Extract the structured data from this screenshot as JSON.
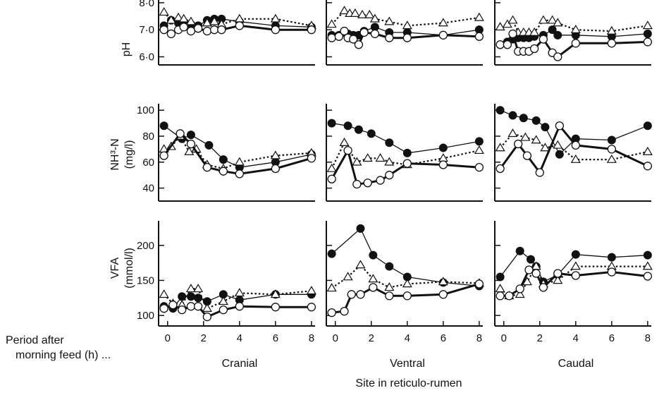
{
  "figure": {
    "xlabel": "Site in reticulo-rumen",
    "period_label_line1": "Period after",
    "period_label_line2": "morning feed (h) ..."
  },
  "chart_data": {
    "type": "line",
    "grid": false,
    "legend": "none",
    "sites": [
      "Cranial",
      "Ventral",
      "Caudal"
    ],
    "x_ticks": [
      0,
      2,
      4,
      6,
      8
    ],
    "xlim": [
      -0.5,
      8.2
    ],
    "series_styles": [
      {
        "marker": "filled-circle",
        "line": "thin-solid"
      },
      {
        "marker": "open-triangle",
        "line": "dotted"
      },
      {
        "marker": "open-circle",
        "line": "thick-solid"
      }
    ],
    "rows": [
      {
        "key": "ph",
        "ylabel": [
          "pH"
        ],
        "ylim": [
          5.7,
          8.1
        ],
        "yticks": [
          6.0,
          7.0,
          8.0
        ],
        "ytick_labels": [
          "6·0",
          "7·0",
          "8·0"
        ],
        "panels": [
          {
            "series": [
              {
                "x": [
                  -0.2,
                  0.2,
                  0.6,
                  0.9,
                  1.3,
                  1.7,
                  2.2,
                  2.6,
                  3.0,
                  4.0,
                  6.0,
                  8.0
                ],
                "y": [
                  7.15,
                  7.35,
                  7.25,
                  7.2,
                  7.2,
                  7.15,
                  7.35,
                  7.4,
                  7.4,
                  7.3,
                  7.15,
                  7.1
                ]
              },
              {
                "x": [
                  -0.2,
                  0.2,
                  0.6,
                  0.9,
                  1.3,
                  1.7,
                  2.2,
                  2.6,
                  3.0,
                  4.0,
                  6.0,
                  8.0
                ],
                "y": [
                  7.65,
                  7.35,
                  7.45,
                  7.4,
                  7.3,
                  7.1,
                  7.25,
                  7.3,
                  7.2,
                  7.4,
                  7.4,
                  7.15
                ]
              },
              {
                "x": [
                  -0.2,
                  0.2,
                  0.6,
                  0.9,
                  1.3,
                  1.7,
                  2.2,
                  2.6,
                  3.0,
                  4.0,
                  6.0,
                  8.0
                ],
                "y": [
                  7.0,
                  6.85,
                  7.0,
                  7.1,
                  6.95,
                  7.05,
                  6.95,
                  7.0,
                  7.0,
                  7.15,
                  7.0,
                  7.0
                ]
              }
            ]
          },
          {
            "series": [
              {
                "x": [
                  -0.2,
                  0.2,
                  0.5,
                  0.7,
                  1.0,
                  1.3,
                  1.6,
                  2.2,
                  3.0,
                  4.0,
                  6.0,
                  8.0
                ],
                "y": [
                  6.8,
                  6.8,
                  6.9,
                  6.85,
                  6.8,
                  6.8,
                  6.95,
                  7.1,
                  6.9,
                  6.9,
                  6.8,
                  7.0
                ]
              },
              {
                "x": [
                  -0.2,
                  0.5,
                  0.8,
                  1.1,
                  1.5,
                  1.9,
                  2.2,
                  3.0,
                  4.0,
                  6.0,
                  8.0
                ],
                "y": [
                  7.2,
                  7.7,
                  7.6,
                  7.6,
                  7.55,
                  7.55,
                  7.4,
                  7.3,
                  7.15,
                  7.25,
                  7.45
                ]
              },
              {
                "x": [
                  -0.2,
                  0.2,
                  0.5,
                  0.7,
                  1.0,
                  1.3,
                  1.6,
                  2.2,
                  3.0,
                  4.0,
                  6.0,
                  8.0
                ],
                "y": [
                  6.7,
                  6.75,
                  6.95,
                  6.7,
                  6.65,
                  6.45,
                  6.9,
                  6.85,
                  6.7,
                  6.7,
                  6.8,
                  6.75
                ]
              }
            ]
          },
          {
            "series": [
              {
                "x": [
                  -0.2,
                  0.2,
                  0.5,
                  0.8,
                  1.1,
                  1.4,
                  1.7,
                  2.2,
                  2.7,
                  3.0,
                  4.0,
                  6.0,
                  8.0
                ],
                "y": [
                  6.45,
                  6.55,
                  6.65,
                  6.7,
                  6.7,
                  6.7,
                  6.75,
                  6.8,
                  7.0,
                  6.8,
                  6.8,
                  6.75,
                  6.85
                ]
              },
              {
                "x": [
                  -0.2,
                  0.2,
                  0.5,
                  0.8,
                  1.1,
                  1.4,
                  1.7,
                  2.2,
                  2.7,
                  3.0,
                  4.0,
                  6.0,
                  8.0
                ],
                "y": [
                  7.1,
                  7.2,
                  7.35,
                  6.9,
                  6.9,
                  6.9,
                  6.9,
                  7.35,
                  7.35,
                  7.25,
                  7.0,
                  6.95,
                  7.15
                ]
              },
              {
                "x": [
                  -0.2,
                  0.2,
                  0.5,
                  0.8,
                  1.1,
                  1.4,
                  1.7,
                  2.2,
                  2.7,
                  3.0,
                  4.0,
                  6.0,
                  8.0
                ],
                "y": [
                  6.45,
                  6.45,
                  6.85,
                  6.2,
                  6.2,
                  6.2,
                  6.3,
                  6.65,
                  6.15,
                  6.0,
                  6.5,
                  6.5,
                  6.55
                ]
              }
            ]
          }
        ]
      },
      {
        "key": "nh3",
        "ylabel": [
          "NH³-N",
          "(mg/l)"
        ],
        "ylim": [
          30,
          105
        ],
        "yticks": [
          40,
          60,
          80,
          100
        ],
        "ytick_labels": [
          "40",
          "60",
          "80",
          "100"
        ],
        "panels": [
          {
            "series": [
              {
                "x": [
                  -0.2,
                  0.8,
                  1.3,
                  2.3,
                  3.1,
                  4.0,
                  6.0,
                  8.0
                ],
                "y": [
                  88,
                  78,
                  81,
                  73,
                  62,
                  56,
                  60,
                  66
                ]
              },
              {
                "x": [
                  -0.2,
                  0.2,
                  0.7,
                  1.2,
                  1.6,
                  2.2,
                  3.1,
                  4.0,
                  6.0,
                  8.0
                ],
                "y": [
                  70,
                  72,
                  80,
                  68,
                  70,
                  58,
                  55,
                  60,
                  65,
                  67
                ]
              },
              {
                "x": [
                  -0.2,
                  0.7,
                  1.3,
                  2.2,
                  3.1,
                  4.0,
                  6.0,
                  8.0
                ],
                "y": [
                  65,
                  82,
                  74,
                  56,
                  53,
                  51,
                  55,
                  63
                ]
              }
            ]
          },
          {
            "series": [
              {
                "x": [
                  -0.2,
                  0.7,
                  1.3,
                  2.0,
                  3.0,
                  4.0,
                  6.0,
                  8.0
                ],
                "y": [
                  90,
                  88,
                  85,
                  82,
                  75,
                  67,
                  71,
                  76
                ]
              },
              {
                "x": [
                  -0.2,
                  0.5,
                  1.2,
                  1.8,
                  2.5,
                  3.0,
                  4.0,
                  6.0,
                  8.0
                ],
                "y": [
                  55,
                  75,
                  60,
                  63,
                  63,
                  60,
                  58,
                  63,
                  69
                ]
              },
              {
                "x": [
                  -0.2,
                  0.7,
                  1.2,
                  1.8,
                  2.5,
                  3.0,
                  4.0,
                  6.0,
                  8.0
                ],
                "y": [
                  47,
                  69,
                  43,
                  44,
                  46,
                  50,
                  59,
                  58,
                  56
                ]
              }
            ]
          },
          {
            "series": [
              {
                "x": [
                  -0.2,
                  0.5,
                  1.1,
                  1.8,
                  2.3,
                  3.1,
                  4.0,
                  6.0,
                  8.0
                ],
                "y": [
                  100,
                  96,
                  94,
                  92,
                  87,
                  66,
                  78,
                  77,
                  88
                ]
              },
              {
                "x": [
                  -0.2,
                  0.5,
                  1.2,
                  1.8,
                  2.3,
                  3.0,
                  4.0,
                  6.0,
                  8.0
                ],
                "y": [
                  71,
                  82,
                  79,
                  77,
                  71,
                  73,
                  62,
                  62,
                  68
                ]
              },
              {
                "x": [
                  -0.2,
                  0.8,
                  1.3,
                  2.0,
                  3.1,
                  4.0,
                  6.0,
                  8.0
                ],
                "y": [
                  55,
                  74,
                  65,
                  52,
                  88,
                  73,
                  70,
                  57
                ]
              }
            ]
          }
        ]
      },
      {
        "key": "vfa",
        "ylabel": [
          "VFA",
          "(mmol/l)"
        ],
        "ylim": [
          85,
          235
        ],
        "yticks": [
          100,
          150,
          200
        ],
        "ytick_labels": [
          "100",
          "150",
          "200"
        ],
        "panels": [
          {
            "series": [
              {
                "x": [
                  -0.2,
                  0.3,
                  0.8,
                  1.3,
                  1.7,
                  2.2,
                  3.1,
                  4.0,
                  6.0,
                  8.0
                ],
                "y": [
                  113,
                  110,
                  127,
                  127,
                  125,
                  120,
                  130,
                  122,
                  130,
                  130
                ]
              },
              {
                "x": [
                  -0.2,
                  0.3,
                  0.8,
                  1.3,
                  1.7,
                  2.2,
                  3.1,
                  4.0,
                  6.0,
                  8.0
                ],
                "y": [
                  130,
                  117,
                  115,
                  138,
                  138,
                  110,
                  120,
                  132,
                  130,
                  135
                ]
              },
              {
                "x": [
                  -0.2,
                  0.3,
                  0.8,
                  1.3,
                  1.7,
                  2.2,
                  3.1,
                  4.0,
                  6.0,
                  8.0
                ],
                "y": [
                  110,
                  115,
                  108,
                  113,
                  113,
                  98,
                  108,
                  113,
                  112,
                  112
                ]
              }
            ]
          },
          {
            "series": [
              {
                "x": [
                  -0.2,
                  1.4,
                  2.1,
                  3.0,
                  4.0,
                  6.0,
                  8.0
                ],
                "y": [
                  188,
                  224,
                  186,
                  170,
                  155,
                  147,
                  142
                ]
              },
              {
                "x": [
                  -0.2,
                  0.7,
                  1.4,
                  2.1,
                  3.0,
                  4.0,
                  6.0,
                  8.0
                ],
                "y": [
                  139,
                  155,
                  172,
                  152,
                  140,
                  145,
                  148,
                  146
                ]
              },
              {
                "x": [
                  -0.2,
                  0.5,
                  0.9,
                  1.4,
                  2.1,
                  3.0,
                  4.0,
                  6.0,
                  8.0
                ],
                "y": [
                  104,
                  106,
                  130,
                  130,
                  140,
                  128,
                  128,
                  130,
                  145
                ]
              }
            ]
          },
          {
            "series": [
              {
                "x": [
                  -0.2,
                  0.9,
                  1.5,
                  1.8,
                  2.2,
                  3.0,
                  4.0,
                  6.0,
                  8.0
                ],
                "y": [
                  155,
                  192,
                  180,
                  170,
                  148,
                  158,
                  187,
                  183,
                  186
                ]
              },
              {
                "x": [
                  -0.2,
                  0.3,
                  0.9,
                  1.3,
                  1.8,
                  2.2,
                  3.0,
                  4.0,
                  6.0,
                  8.0
                ],
                "y": [
                  138,
                  128,
                  130,
                  148,
                  170,
                  145,
                  150,
                  170,
                  170,
                  170
                ]
              },
              {
                "x": [
                  -0.2,
                  0.3,
                  0.9,
                  1.4,
                  1.8,
                  2.2,
                  3.0,
                  4.0,
                  6.0,
                  8.0
                ],
                "y": [
                  128,
                  128,
                  138,
                  165,
                  160,
                  140,
                  160,
                  157,
                  162,
                  156
                ]
              }
            ]
          }
        ]
      }
    ]
  }
}
